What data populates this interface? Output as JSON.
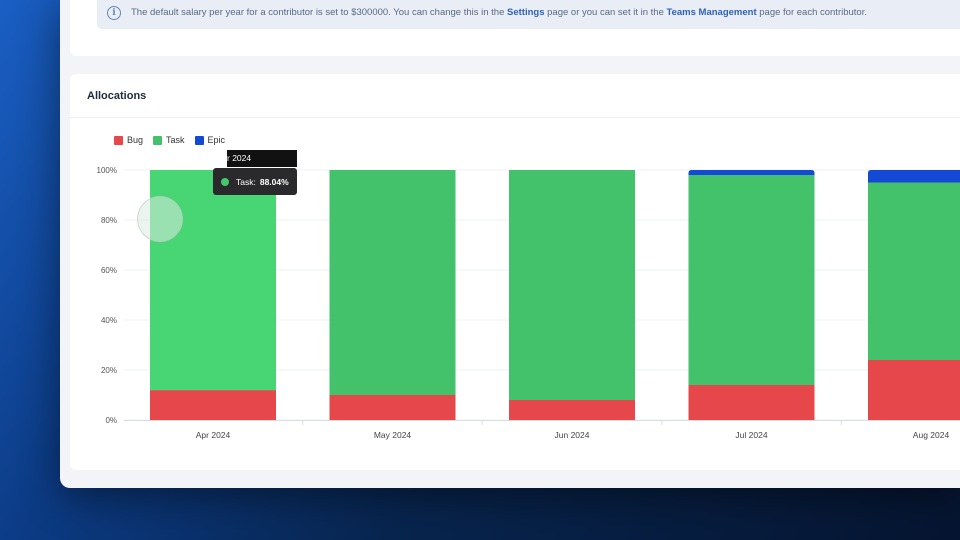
{
  "info": {
    "text_before": "The default salary per year for a contributor is set to $300000. You can change this in the ",
    "settings_link": "Settings",
    "text_middle": " page or you can set it in the ",
    "teams_link": "Teams Management",
    "text_after": " page for each contributor."
  },
  "card": {
    "title": "Allocations"
  },
  "tooltip": {
    "header": "r 2024",
    "label": "Task:",
    "value": "88.04%"
  },
  "colors": {
    "bug": "#e5474a",
    "task": "#43c26b",
    "task_hover": "#48d574",
    "epic": "#1449d6"
  },
  "chart_data": {
    "type": "bar",
    "stacked": true,
    "categories": [
      "Apr 2024",
      "May 2024",
      "Jun 2024",
      "Jul 2024",
      "Aug 2024"
    ],
    "series": [
      {
        "name": "Bug",
        "values": [
          11.96,
          10,
          8,
          14,
          24
        ]
      },
      {
        "name": "Task",
        "values": [
          88.04,
          90,
          92,
          84,
          71
        ]
      },
      {
        "name": "Epic",
        "values": [
          0,
          0,
          0,
          2,
          5
        ]
      }
    ],
    "ylim": [
      0,
      100
    ],
    "yticks": [
      "0%",
      "20%",
      "40%",
      "60%",
      "80%",
      "100%"
    ],
    "legend": "top-left",
    "grid": true
  }
}
